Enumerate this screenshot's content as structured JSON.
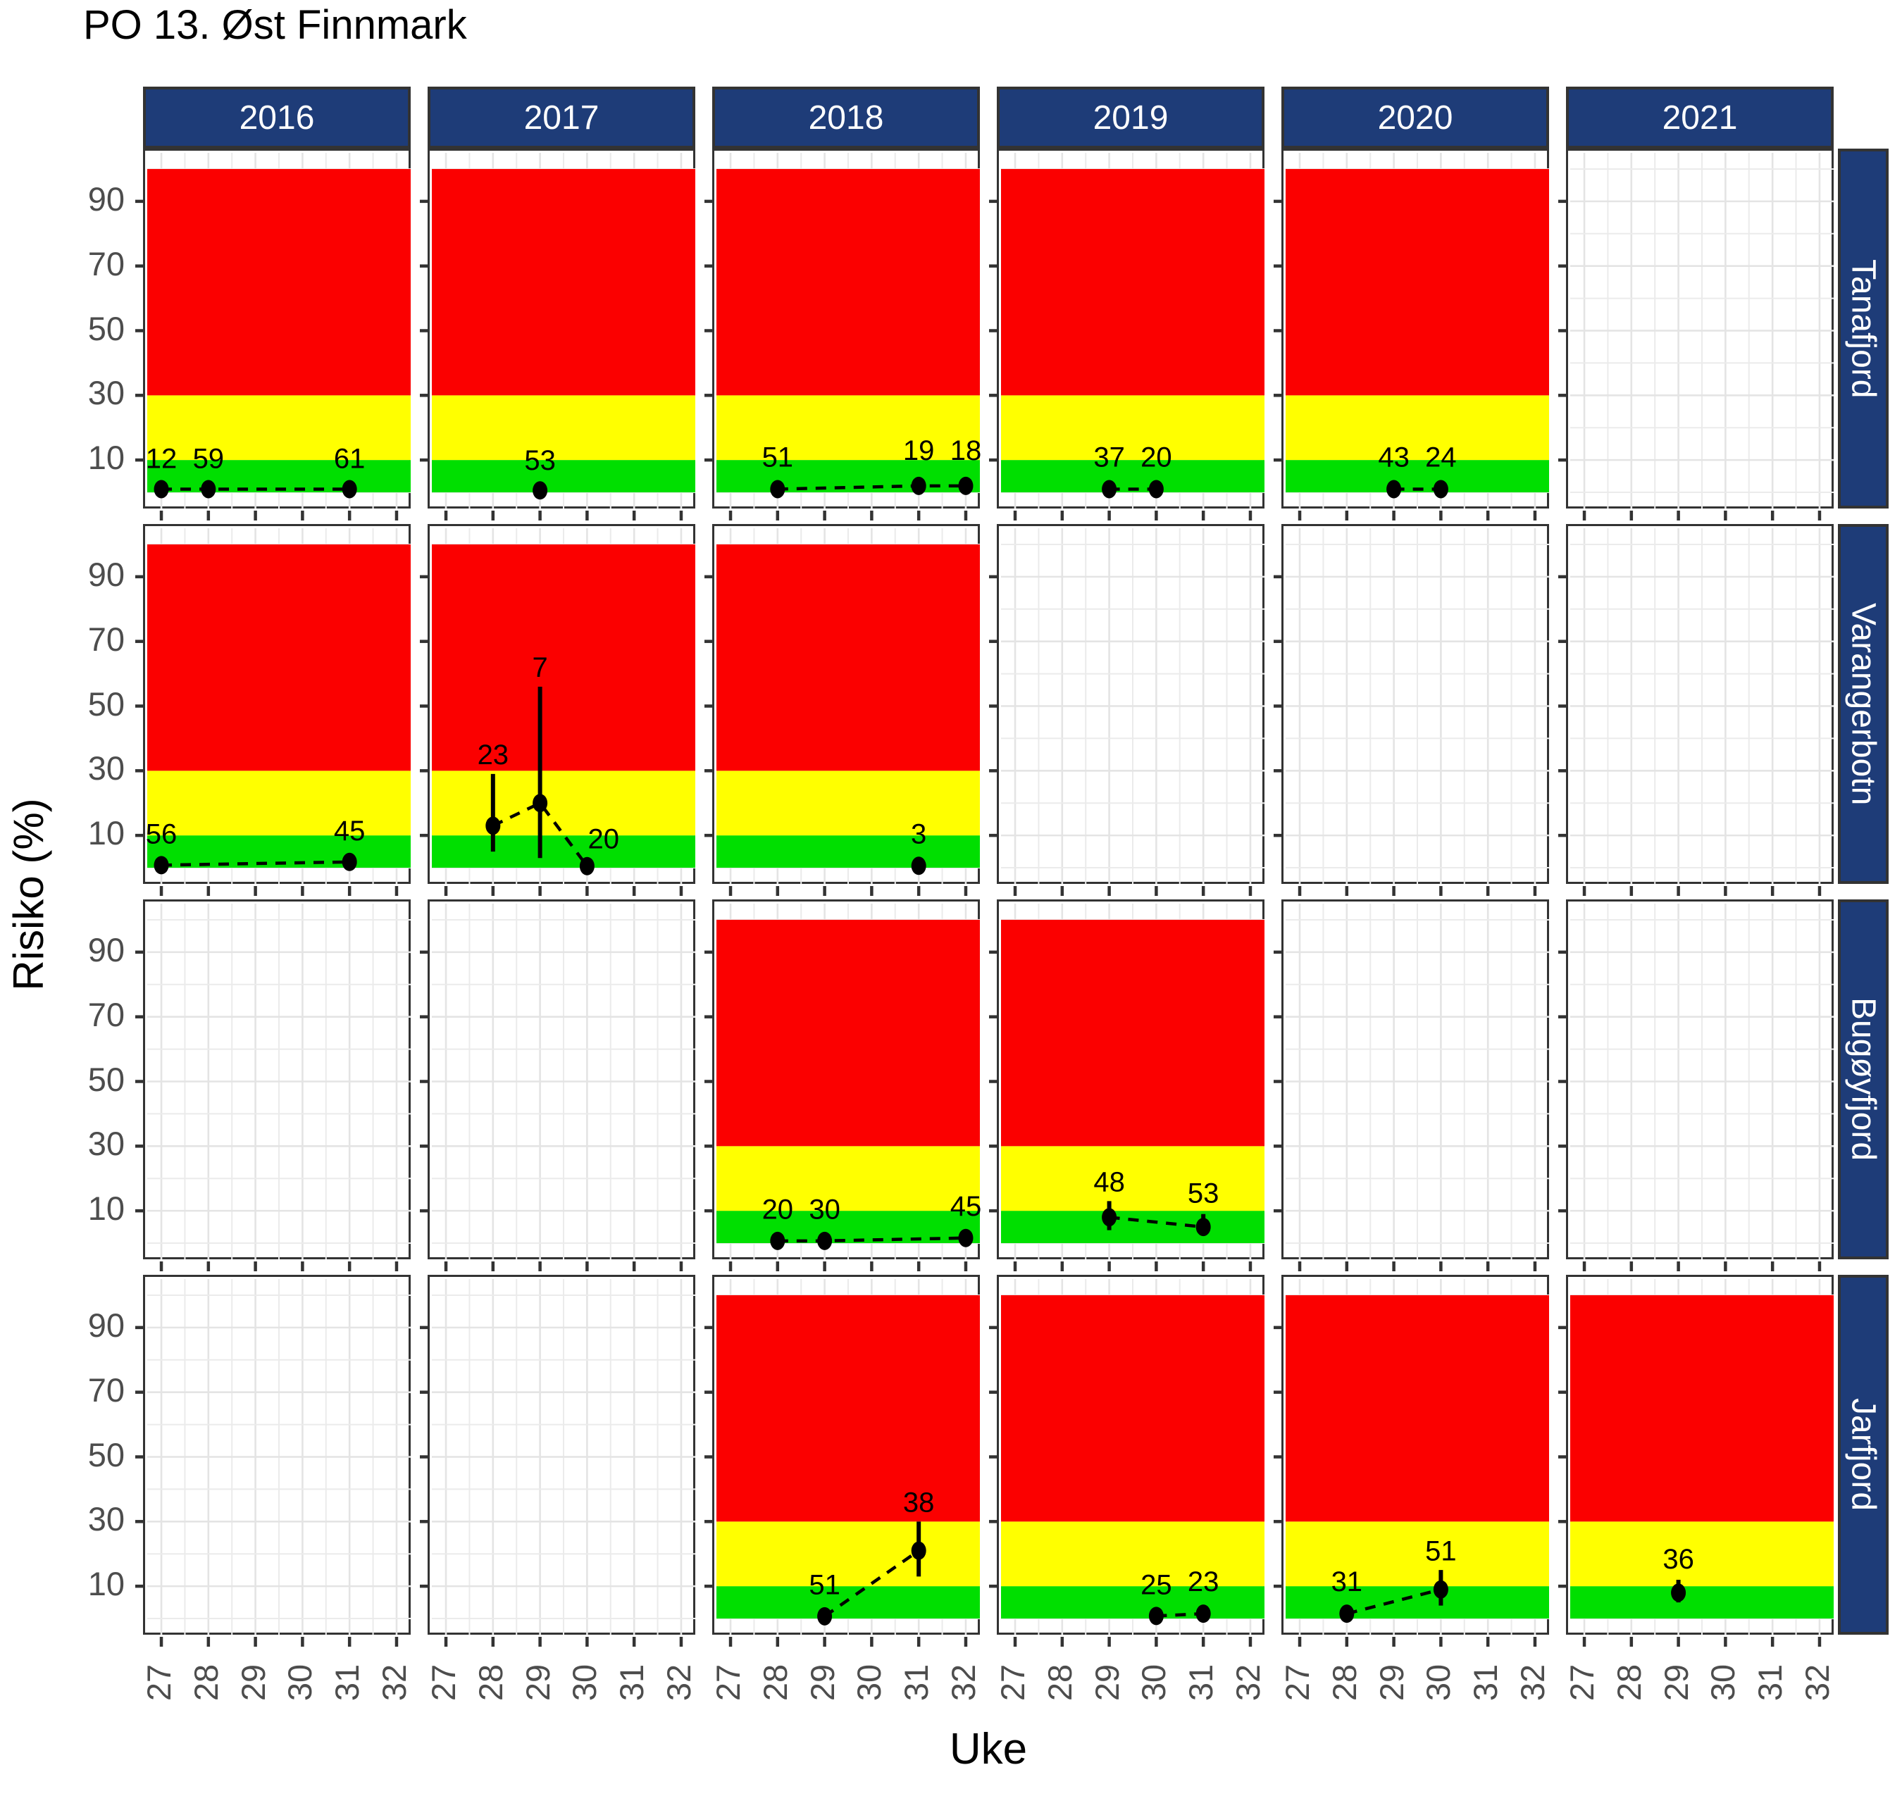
{
  "title": "PO 13. Øst Finnmark",
  "chart_data": {
    "type": "scatter",
    "title": "PO 13. Øst Finnmark",
    "xlabel": "Uke",
    "ylabel": "Risiko (%)",
    "facet_columns": [
      "2016",
      "2017",
      "2018",
      "2019",
      "2020",
      "2021"
    ],
    "facet_rows": [
      "Tanafjord",
      "Varangerbotn",
      "Bugøyfjord",
      "Jarfjord"
    ],
    "x_ticks": [
      27,
      28,
      29,
      30,
      31,
      32
    ],
    "y_ticks": [
      10,
      30,
      50,
      70,
      90
    ],
    "x_minor_ticks": [
      27.5,
      28.5,
      29.5,
      30.5,
      31.5
    ],
    "y_minor_gridlines": [
      0,
      20,
      40,
      60,
      80,
      100
    ],
    "x_range": [
      26.7,
      32.3
    ],
    "y_range": [
      -5,
      105
    ],
    "legend_position": "none",
    "grid": true,
    "colors": {
      "band_green": "#00DF00",
      "band_yellow": "#FFFF00",
      "band_red": "#FB0000",
      "strip_fill": "#1E3C78",
      "strip_text": "#FFFFFF",
      "grid_major": "#E4E4E4",
      "grid_minor": "#EBEBEB",
      "border": "#333333",
      "axis_text": "#4D4D4D",
      "data": "#000000"
    },
    "risk_bands": [
      {
        "name": "low",
        "from": 0,
        "to": 10,
        "color_key": "band_green"
      },
      {
        "name": "medium",
        "from": 10,
        "to": 30,
        "color_key": "band_yellow"
      },
      {
        "name": "high",
        "from": 30,
        "to": 100,
        "color_key": "band_red"
      }
    ],
    "panels": [
      {
        "row": "Tanafjord",
        "col": "2016",
        "has_data": true,
        "points": [
          {
            "x": 27,
            "y": 1,
            "label": "12",
            "label_y": 7.5
          },
          {
            "x": 28,
            "y": 1,
            "label": "59",
            "label_y": 7.5
          },
          {
            "x": 31,
            "y": 1,
            "label": "61",
            "label_y": 7.5
          }
        ]
      },
      {
        "row": "Tanafjord",
        "col": "2017",
        "has_data": true,
        "points": [
          {
            "x": 29,
            "y": 0.6,
            "label": "53",
            "label_y": 7
          }
        ]
      },
      {
        "row": "Tanafjord",
        "col": "2018",
        "has_data": true,
        "points": [
          {
            "x": 28,
            "y": 1,
            "label": "51",
            "label_y": 8
          },
          {
            "x": 31,
            "y": 2,
            "label": "19",
            "label_y": 10
          },
          {
            "x": 32,
            "y": 2,
            "label": "18",
            "label_y": 10
          }
        ]
      },
      {
        "row": "Tanafjord",
        "col": "2019",
        "has_data": true,
        "points": [
          {
            "x": 29,
            "y": 1,
            "label": "37",
            "label_y": 8
          },
          {
            "x": 30,
            "y": 1,
            "label": "20",
            "label_y": 8
          }
        ]
      },
      {
        "row": "Tanafjord",
        "col": "2020",
        "has_data": true,
        "points": [
          {
            "x": 29,
            "y": 1,
            "label": "43",
            "label_y": 8
          },
          {
            "x": 30,
            "y": 1,
            "label": "24",
            "label_y": 8
          }
        ]
      },
      {
        "row": "Tanafjord",
        "col": "2021",
        "has_data": false,
        "points": []
      },
      {
        "row": "Varangerbotn",
        "col": "2016",
        "has_data": true,
        "points": [
          {
            "x": 27,
            "y": 0.8,
            "label": "56",
            "label_y": 7.5
          },
          {
            "x": 31,
            "y": 1.8,
            "label": "45",
            "label_y": 8.5
          }
        ]
      },
      {
        "row": "Varangerbotn",
        "col": "2017",
        "has_data": true,
        "points": [
          {
            "x": 28,
            "y": 13,
            "err": [
              5,
              29
            ],
            "label": "23",
            "label_y": 32
          },
          {
            "x": 29,
            "y": 20,
            "err": [
              3,
              56
            ],
            "label": "7",
            "label_y": 59
          },
          {
            "x": 30,
            "y": 0.5,
            "label": "20",
            "label_y": 6,
            "label_x": 30.35
          }
        ]
      },
      {
        "row": "Varangerbotn",
        "col": "2018",
        "has_data": true,
        "points": [
          {
            "x": 31,
            "y": 0.6,
            "label": "3",
            "label_y": 7.5
          }
        ]
      },
      {
        "row": "Varangerbotn",
        "col": "2019",
        "has_data": false,
        "points": []
      },
      {
        "row": "Varangerbotn",
        "col": "2020",
        "has_data": false,
        "points": []
      },
      {
        "row": "Varangerbotn",
        "col": "2021",
        "has_data": false,
        "points": []
      },
      {
        "row": "Bugøyfjord",
        "col": "2016",
        "has_data": false,
        "points": []
      },
      {
        "row": "Bugøyfjord",
        "col": "2017",
        "has_data": false,
        "points": []
      },
      {
        "row": "Bugøyfjord",
        "col": "2018",
        "has_data": true,
        "points": [
          {
            "x": 28,
            "y": 0.7,
            "label": "20",
            "label_y": 7.5
          },
          {
            "x": 29,
            "y": 0.7,
            "label": "30",
            "label_y": 7.5
          },
          {
            "x": 32,
            "y": 1.6,
            "label": "45",
            "label_y": 8.5
          }
        ]
      },
      {
        "row": "Bugøyfjord",
        "col": "2019",
        "has_data": true,
        "points": [
          {
            "x": 29,
            "y": 8,
            "err": [
              4,
              13
            ],
            "label": "48",
            "label_y": 16
          },
          {
            "x": 31,
            "y": 5,
            "err": [
              3.5,
              9
            ],
            "label": "53",
            "label_y": 12.5
          }
        ]
      },
      {
        "row": "Bugøyfjord",
        "col": "2020",
        "has_data": false,
        "points": []
      },
      {
        "row": "Bugøyfjord",
        "col": "2021",
        "has_data": false,
        "points": []
      },
      {
        "row": "Jarfjord",
        "col": "2016",
        "has_data": false,
        "points": []
      },
      {
        "row": "Jarfjord",
        "col": "2017",
        "has_data": false,
        "points": []
      },
      {
        "row": "Jarfjord",
        "col": "2018",
        "has_data": true,
        "points": [
          {
            "x": 29,
            "y": 0.7,
            "label": "51",
            "label_y": 7.5
          },
          {
            "x": 31,
            "y": 21,
            "err": [
              13,
              30
            ],
            "label": "38",
            "label_y": 33
          }
        ]
      },
      {
        "row": "Jarfjord",
        "col": "2019",
        "has_data": true,
        "points": [
          {
            "x": 30,
            "y": 0.8,
            "label": "25",
            "label_y": 7.5
          },
          {
            "x": 31,
            "y": 1.5,
            "label": "23",
            "label_y": 8.5
          }
        ]
      },
      {
        "row": "Jarfjord",
        "col": "2020",
        "has_data": true,
        "points": [
          {
            "x": 28,
            "y": 1.5,
            "label": "31",
            "label_y": 8.5
          },
          {
            "x": 30,
            "y": 9,
            "err": [
              4,
              15
            ],
            "label": "51",
            "label_y": 18
          }
        ]
      },
      {
        "row": "Jarfjord",
        "col": "2021",
        "has_data": true,
        "points": [
          {
            "x": 29,
            "y": 8,
            "err": [
              5,
              12
            ],
            "label": "36",
            "label_y": 15.5
          }
        ]
      }
    ]
  }
}
